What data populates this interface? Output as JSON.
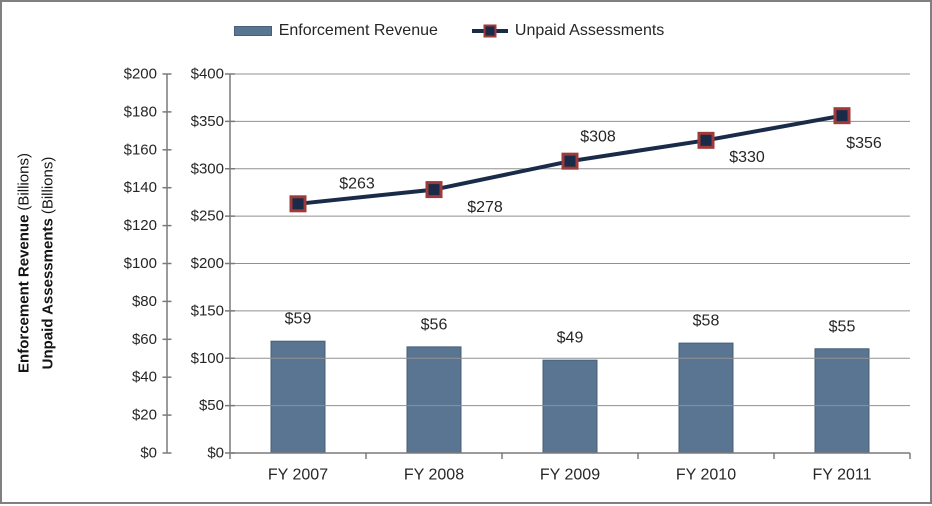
{
  "legend": {
    "items": [
      {
        "label": "Enforcement Revenue",
        "swatch": "bar"
      },
      {
        "label": "Unpaid Assessments",
        "swatch": "line-marker"
      }
    ]
  },
  "chart_data": {
    "type": "bar+line",
    "legend_position": "top",
    "grid": true,
    "categories": [
      "FY 2007",
      "FY 2008",
      "FY 2009",
      "FY 2010",
      "FY 2011"
    ],
    "series": [
      {
        "name": "Enforcement Revenue",
        "chart_type": "bar",
        "axis": "left_outer",
        "values": [
          59,
          56,
          49,
          58,
          55
        ],
        "data_labels": [
          "$59",
          "$56",
          "$49",
          "$58",
          "$55"
        ],
        "color": "#5a7591"
      },
      {
        "name": "Unpaid Assessments",
        "chart_type": "line",
        "axis": "left_inner",
        "values": [
          263,
          278,
          308,
          330,
          356
        ],
        "data_labels": [
          "$263",
          "$278",
          "$308",
          "$330",
          "$356"
        ],
        "label_offsets": [
          [
            59,
            -20
          ],
          [
            51,
            18
          ],
          [
            28,
            -24
          ],
          [
            41,
            17
          ],
          [
            22,
            28
          ]
        ],
        "line_color": "#1a2b4a",
        "marker_fill": "#1a2b4a",
        "marker_border": "#9e3a39"
      }
    ],
    "axes": {
      "left_outer": {
        "title": "Enforcement Revenue",
        "title_suffix": "(Billions)",
        "min": 0,
        "max": 200,
        "step": 20,
        "tick_labels": [
          "$0",
          "$20",
          "$40",
          "$60",
          "$80",
          "$100",
          "$120",
          "$140",
          "$160",
          "$180",
          "$200"
        ]
      },
      "left_inner": {
        "title": "Unpaid Assessments",
        "title_suffix": "(Billions)",
        "min": 0,
        "max": 400,
        "step": 50,
        "tick_labels": [
          "$0",
          "$50",
          "$100",
          "$150",
          "$200",
          "$250",
          "$300",
          "$350",
          "$400"
        ]
      }
    }
  },
  "colors": {
    "bar": "#5a7591",
    "bar_border": "#46607b",
    "line": "#1a2b4a",
    "marker_fill": "#1a2b4a",
    "marker_border": "#9e3a39",
    "gridline": "#919191",
    "axis_line": "#7a7a7a",
    "text": "#262626",
    "frame_border": "#808080"
  }
}
